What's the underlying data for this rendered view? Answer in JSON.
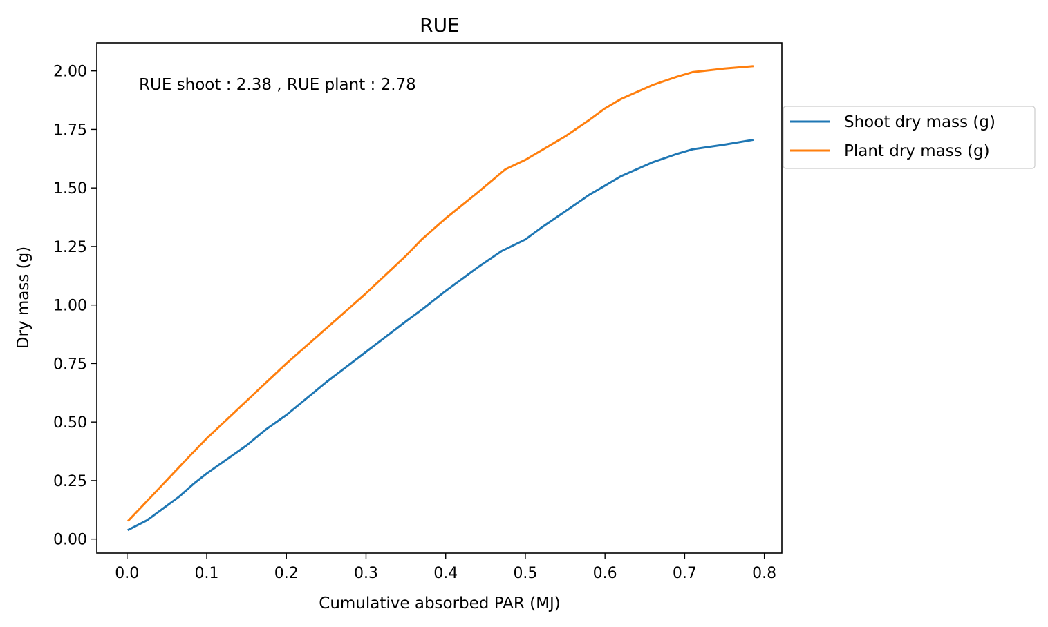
{
  "chart_data": {
    "type": "line",
    "title": "RUE",
    "xlabel": "Cumulative absorbed PAR (MJ)",
    "ylabel": "Dry mass (g)",
    "xlim": [
      -0.038,
      0.822
    ],
    "ylim": [
      -0.06,
      2.12
    ],
    "xticks": [
      0.0,
      0.1,
      0.2,
      0.3,
      0.4,
      0.5,
      0.6,
      0.7,
      0.8
    ],
    "xtick_labels": [
      "0.0",
      "0.1",
      "0.2",
      "0.3",
      "0.4",
      "0.5",
      "0.6",
      "0.7",
      "0.8"
    ],
    "yticks": [
      0.0,
      0.25,
      0.5,
      0.75,
      1.0,
      1.25,
      1.5,
      1.75,
      2.0
    ],
    "ytick_labels": [
      "0.00",
      "0.25",
      "0.50",
      "0.75",
      "1.00",
      "1.25",
      "1.50",
      "1.75",
      "2.00"
    ],
    "annotation": "RUE shoot : 2.38 , RUE plant : 2.78",
    "legend_position": "outside-right",
    "grid": false,
    "series": [
      {
        "name": "Shoot dry mass (g)",
        "color": "#1f77b4",
        "x": [
          0.002,
          0.025,
          0.045,
          0.065,
          0.085,
          0.1,
          0.125,
          0.15,
          0.175,
          0.2,
          0.25,
          0.3,
          0.35,
          0.37,
          0.4,
          0.44,
          0.47,
          0.5,
          0.52,
          0.55,
          0.58,
          0.6,
          0.62,
          0.66,
          0.69,
          0.71,
          0.75,
          0.785
        ],
        "y": [
          0.04,
          0.08,
          0.13,
          0.18,
          0.24,
          0.28,
          0.34,
          0.4,
          0.47,
          0.53,
          0.67,
          0.8,
          0.93,
          0.98,
          1.06,
          1.16,
          1.23,
          1.28,
          1.33,
          1.4,
          1.47,
          1.51,
          1.55,
          1.61,
          1.645,
          1.665,
          1.685,
          1.705
        ]
      },
      {
        "name": "Plant dry mass (g)",
        "color": "#ff7f0e",
        "x": [
          0.002,
          0.03,
          0.055,
          0.08,
          0.1,
          0.125,
          0.15,
          0.175,
          0.2,
          0.25,
          0.3,
          0.35,
          0.37,
          0.4,
          0.44,
          0.475,
          0.5,
          0.52,
          0.55,
          0.58,
          0.6,
          0.62,
          0.66,
          0.69,
          0.71,
          0.75,
          0.785
        ],
        "y": [
          0.08,
          0.18,
          0.27,
          0.36,
          0.43,
          0.51,
          0.59,
          0.67,
          0.75,
          0.9,
          1.05,
          1.21,
          1.28,
          1.37,
          1.48,
          1.58,
          1.62,
          1.66,
          1.72,
          1.79,
          1.84,
          1.88,
          1.94,
          1.975,
          1.995,
          2.01,
          2.02
        ]
      }
    ]
  }
}
